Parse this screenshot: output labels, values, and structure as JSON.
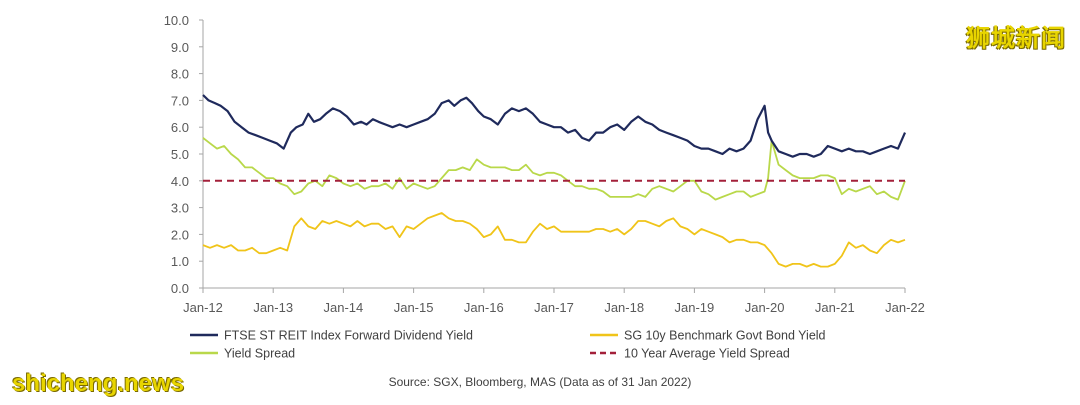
{
  "watermark": {
    "chinese": "狮城新闻",
    "site": "shicheng.news"
  },
  "source_note": "Source: SGX, Bloomberg, MAS (Data as of 31 Jan 2022)",
  "colors": {
    "reit": "#1f2a5c",
    "bond": "#f0c419",
    "spread": "#b9d84a",
    "average": "#a3203a",
    "axis": "#a6a6a6",
    "text": "#595959"
  },
  "chart_data": {
    "type": "line",
    "title": "",
    "xlabel": "",
    "ylabel": "",
    "ylim": [
      0,
      10
    ],
    "x_range": [
      2012,
      2022
    ],
    "yticks": [
      "0.0",
      "1.0",
      "2.0",
      "3.0",
      "4.0",
      "5.0",
      "6.0",
      "7.0",
      "8.0",
      "9.0",
      "10.0"
    ],
    "xticks": [
      "Jan-12",
      "Jan-13",
      "Jan-14",
      "Jan-15",
      "Jan-16",
      "Jan-17",
      "Jan-18",
      "Jan-19",
      "Jan-20",
      "Jan-21",
      "Jan-22"
    ],
    "series": [
      {
        "name": "FTSE ST REIT Index Forward Dividend Yield",
        "key": "reit",
        "x": [
          2012.0,
          2012.08,
          2012.17,
          2012.25,
          2012.35,
          2012.45,
          2012.55,
          2012.65,
          2012.75,
          2012.85,
          2012.95,
          2013.05,
          2013.15,
          2013.25,
          2013.33,
          2013.42,
          2013.5,
          2013.58,
          2013.67,
          2013.75,
          2013.85,
          2013.95,
          2014.05,
          2014.15,
          2014.25,
          2014.33,
          2014.42,
          2014.5,
          2014.6,
          2014.7,
          2014.8,
          2014.9,
          2015.0,
          2015.1,
          2015.2,
          2015.3,
          2015.4,
          2015.5,
          2015.58,
          2015.67,
          2015.75,
          2015.83,
          2015.92,
          2016.0,
          2016.1,
          2016.2,
          2016.3,
          2016.4,
          2016.5,
          2016.6,
          2016.7,
          2016.8,
          2016.9,
          2017.0,
          2017.1,
          2017.2,
          2017.3,
          2017.4,
          2017.5,
          2017.6,
          2017.7,
          2017.8,
          2017.9,
          2018.0,
          2018.1,
          2018.2,
          2018.3,
          2018.4,
          2018.5,
          2018.6,
          2018.7,
          2018.8,
          2018.9,
          2019.0,
          2019.1,
          2019.2,
          2019.3,
          2019.4,
          2019.5,
          2019.6,
          2019.7,
          2019.8,
          2019.9,
          2020.0,
          2020.05,
          2020.1,
          2020.15,
          2020.2,
          2020.3,
          2020.4,
          2020.5,
          2020.6,
          2020.7,
          2020.8,
          2020.9,
          2021.0,
          2021.1,
          2021.2,
          2021.3,
          2021.4,
          2021.5,
          2021.6,
          2021.7,
          2021.8,
          2021.9,
          2022.0
        ],
        "values": [
          7.2,
          7.0,
          6.9,
          6.8,
          6.6,
          6.2,
          6.0,
          5.8,
          5.7,
          5.6,
          5.5,
          5.4,
          5.2,
          5.8,
          6.0,
          6.1,
          6.5,
          6.2,
          6.3,
          6.5,
          6.7,
          6.6,
          6.4,
          6.1,
          6.2,
          6.1,
          6.3,
          6.2,
          6.1,
          6.0,
          6.1,
          6.0,
          6.1,
          6.2,
          6.3,
          6.5,
          6.9,
          7.0,
          6.8,
          7.0,
          7.1,
          6.9,
          6.6,
          6.4,
          6.3,
          6.1,
          6.5,
          6.7,
          6.6,
          6.7,
          6.5,
          6.2,
          6.1,
          6.0,
          6.0,
          5.8,
          5.9,
          5.6,
          5.5,
          5.8,
          5.8,
          6.0,
          6.1,
          5.9,
          6.2,
          6.4,
          6.2,
          6.1,
          5.9,
          5.8,
          5.7,
          5.6,
          5.5,
          5.3,
          5.2,
          5.2,
          5.1,
          5.0,
          5.2,
          5.1,
          5.2,
          5.5,
          6.3,
          6.8,
          5.8,
          5.5,
          5.3,
          5.1,
          5.0,
          4.9,
          5.0,
          5.0,
          4.9,
          5.0,
          5.3,
          5.2,
          5.1,
          5.2,
          5.1,
          5.1,
          5.0,
          5.1,
          5.2,
          5.3,
          5.2,
          5.8
        ]
      },
      {
        "name": "SG 10y Benchmark Govt Bond Yield",
        "key": "bond",
        "x": [
          2012.0,
          2012.1,
          2012.2,
          2012.3,
          2012.4,
          2012.5,
          2012.6,
          2012.7,
          2012.8,
          2012.9,
          2013.0,
          2013.1,
          2013.2,
          2013.3,
          2013.4,
          2013.5,
          2013.6,
          2013.7,
          2013.8,
          2013.9,
          2014.0,
          2014.1,
          2014.2,
          2014.3,
          2014.4,
          2014.5,
          2014.6,
          2014.7,
          2014.8,
          2014.9,
          2015.0,
          2015.1,
          2015.2,
          2015.3,
          2015.4,
          2015.5,
          2015.6,
          2015.7,
          2015.8,
          2015.9,
          2016.0,
          2016.1,
          2016.2,
          2016.3,
          2016.4,
          2016.5,
          2016.6,
          2016.7,
          2016.8,
          2016.9,
          2017.0,
          2017.1,
          2017.2,
          2017.3,
          2017.4,
          2017.5,
          2017.6,
          2017.7,
          2017.8,
          2017.9,
          2018.0,
          2018.1,
          2018.2,
          2018.3,
          2018.4,
          2018.5,
          2018.6,
          2018.7,
          2018.8,
          2018.9,
          2019.0,
          2019.1,
          2019.2,
          2019.3,
          2019.4,
          2019.5,
          2019.6,
          2019.7,
          2019.8,
          2019.9,
          2020.0,
          2020.1,
          2020.2,
          2020.3,
          2020.4,
          2020.5,
          2020.6,
          2020.7,
          2020.8,
          2020.9,
          2021.0,
          2021.1,
          2021.2,
          2021.3,
          2021.4,
          2021.5,
          2021.6,
          2021.7,
          2021.8,
          2021.9,
          2022.0
        ],
        "values": [
          1.6,
          1.5,
          1.6,
          1.5,
          1.6,
          1.4,
          1.4,
          1.5,
          1.3,
          1.3,
          1.4,
          1.5,
          1.4,
          2.3,
          2.6,
          2.3,
          2.2,
          2.5,
          2.4,
          2.5,
          2.4,
          2.3,
          2.5,
          2.3,
          2.4,
          2.4,
          2.2,
          2.3,
          1.9,
          2.3,
          2.2,
          2.4,
          2.6,
          2.7,
          2.8,
          2.6,
          2.5,
          2.5,
          2.4,
          2.2,
          1.9,
          2.0,
          2.3,
          1.8,
          1.8,
          1.7,
          1.7,
          2.1,
          2.4,
          2.2,
          2.3,
          2.1,
          2.1,
          2.1,
          2.1,
          2.1,
          2.2,
          2.2,
          2.1,
          2.2,
          2.0,
          2.2,
          2.5,
          2.5,
          2.4,
          2.3,
          2.5,
          2.6,
          2.3,
          2.2,
          2.0,
          2.2,
          2.1,
          2.0,
          1.9,
          1.7,
          1.8,
          1.8,
          1.7,
          1.7,
          1.6,
          1.3,
          0.9,
          0.8,
          0.9,
          0.9,
          0.8,
          0.9,
          0.8,
          0.8,
          0.9,
          1.2,
          1.7,
          1.5,
          1.6,
          1.4,
          1.3,
          1.6,
          1.8,
          1.7,
          1.8
        ]
      },
      {
        "name": "Yield Spread",
        "key": "spread",
        "x": [
          2012.0,
          2012.1,
          2012.2,
          2012.3,
          2012.4,
          2012.5,
          2012.6,
          2012.7,
          2012.8,
          2012.9,
          2013.0,
          2013.1,
          2013.2,
          2013.3,
          2013.4,
          2013.5,
          2013.6,
          2013.7,
          2013.8,
          2013.9,
          2014.0,
          2014.1,
          2014.2,
          2014.3,
          2014.4,
          2014.5,
          2014.6,
          2014.7,
          2014.8,
          2014.9,
          2015.0,
          2015.1,
          2015.2,
          2015.3,
          2015.4,
          2015.5,
          2015.6,
          2015.7,
          2015.8,
          2015.9,
          2016.0,
          2016.1,
          2016.2,
          2016.3,
          2016.4,
          2016.5,
          2016.6,
          2016.7,
          2016.8,
          2016.9,
          2017.0,
          2017.1,
          2017.2,
          2017.3,
          2017.4,
          2017.5,
          2017.6,
          2017.7,
          2017.8,
          2017.9,
          2018.0,
          2018.1,
          2018.2,
          2018.3,
          2018.4,
          2018.5,
          2018.6,
          2018.7,
          2018.8,
          2018.9,
          2019.0,
          2019.1,
          2019.2,
          2019.3,
          2019.4,
          2019.5,
          2019.6,
          2019.7,
          2019.8,
          2019.9,
          2020.0,
          2020.05,
          2020.1,
          2020.2,
          2020.3,
          2020.4,
          2020.5,
          2020.6,
          2020.7,
          2020.8,
          2020.9,
          2021.0,
          2021.1,
          2021.2,
          2021.3,
          2021.4,
          2021.5,
          2021.6,
          2021.7,
          2021.8,
          2021.9,
          2022.0
        ],
        "values": [
          5.6,
          5.4,
          5.2,
          5.3,
          5.0,
          4.8,
          4.5,
          4.5,
          4.3,
          4.1,
          4.1,
          3.9,
          3.8,
          3.5,
          3.6,
          3.9,
          4.0,
          3.8,
          4.2,
          4.1,
          3.9,
          3.8,
          3.9,
          3.7,
          3.8,
          3.8,
          3.9,
          3.7,
          4.1,
          3.7,
          3.9,
          3.8,
          3.7,
          3.8,
          4.1,
          4.4,
          4.4,
          4.5,
          4.4,
          4.8,
          4.6,
          4.5,
          4.5,
          4.5,
          4.4,
          4.4,
          4.6,
          4.3,
          4.2,
          4.3,
          4.3,
          4.2,
          4.0,
          3.8,
          3.8,
          3.7,
          3.7,
          3.6,
          3.4,
          3.4,
          3.4,
          3.4,
          3.5,
          3.4,
          3.7,
          3.8,
          3.7,
          3.6,
          3.8,
          4.0,
          4.0,
          3.6,
          3.5,
          3.3,
          3.4,
          3.5,
          3.6,
          3.6,
          3.4,
          3.5,
          3.6,
          4.1,
          5.5,
          4.6,
          4.4,
          4.2,
          4.1,
          4.1,
          4.1,
          4.2,
          4.2,
          4.1,
          3.5,
          3.7,
          3.6,
          3.7,
          3.8,
          3.5,
          3.6,
          3.4,
          3.3,
          4.0
        ]
      }
    ],
    "reference_lines": [
      {
        "name": "10 Year Average Yield Spread",
        "key": "average",
        "y": 4.0,
        "style": "dashed"
      }
    ],
    "legend": {
      "placement": "bottom",
      "entries": [
        {
          "label": "FTSE ST REIT Index Forward Dividend Yield",
          "key": "reit",
          "style": "solid"
        },
        {
          "label": "SG 10y Benchmark Govt Bond Yield",
          "key": "bond",
          "style": "solid"
        },
        {
          "label": "Yield Spread",
          "key": "spread",
          "style": "solid"
        },
        {
          "label": "10 Year Average Yield Spread",
          "key": "average",
          "style": "dashed"
        }
      ]
    }
  }
}
